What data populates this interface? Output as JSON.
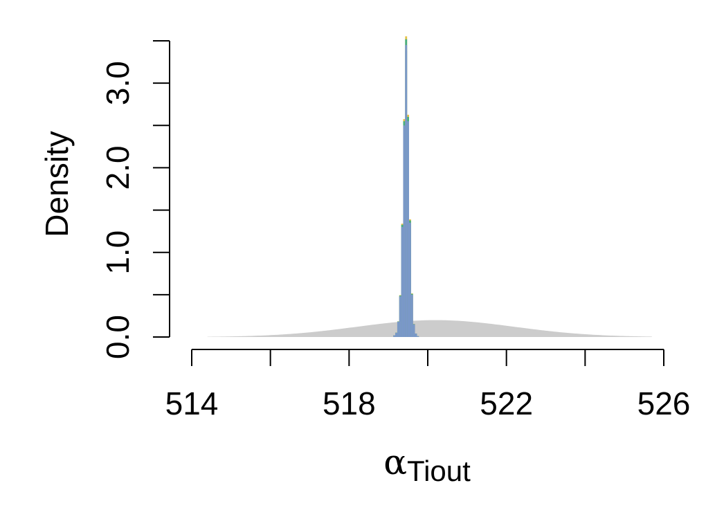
{
  "chart_data": {
    "type": "area",
    "xlabel": "α",
    "xlabel_subscript": "Tiout",
    "ylabel": "Density",
    "xlim": [
      514,
      526
    ],
    "ylim": [
      0,
      3.5
    ],
    "x_ticks": [
      514,
      516,
      518,
      520,
      522,
      524,
      526
    ],
    "x_tick_labels": [
      "514",
      "518",
      "522",
      "526"
    ],
    "y_ticks": [
      0,
      0.5,
      1.0,
      1.5,
      2.0,
      2.5,
      3.0,
      3.5
    ],
    "y_tick_labels": [
      "0.0",
      "1.0",
      "2.0",
      "3.0"
    ],
    "grid": false,
    "series": [
      {
        "role": "prior",
        "color": "#cccccc",
        "kind": "normal-density",
        "mean": 520.2,
        "sd": 2.0,
        "x_range": [
          514.4,
          525.7
        ]
      },
      {
        "role": "posterior",
        "colors": [
          "#e5c24a",
          "#d59bc8",
          "#4aaf7f",
          "#7a98c8"
        ],
        "kind": "histogram",
        "bin_centers": [
          519.15,
          519.2,
          519.25,
          519.3,
          519.35,
          519.4,
          519.45,
          519.5,
          519.55,
          519.6,
          519.65,
          519.7,
          519.75
        ],
        "values": [
          0.02,
          0.05,
          0.18,
          0.48,
          1.3,
          2.5,
          3.45,
          2.55,
          1.35,
          0.5,
          0.15,
          0.04,
          0.01
        ]
      }
    ]
  }
}
